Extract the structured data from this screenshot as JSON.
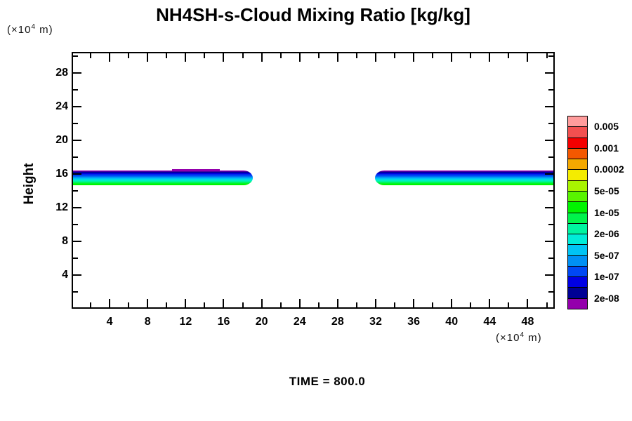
{
  "page": {
    "time_label": "TIME = 800.0"
  },
  "axis": {
    "y_label": "Height",
    "y_unit": {
      "prefix": "(×10",
      "exp": "4",
      "suffix": " m)"
    },
    "x_unit": {
      "prefix": "(×10",
      "exp": "4",
      "suffix": " m)"
    },
    "x_tick_labels": [
      "4",
      "8",
      "12",
      "16",
      "20",
      "24",
      "28",
      "32",
      "36",
      "40",
      "44",
      "48"
    ],
    "y_tick_labels": [
      "4",
      "8",
      "12",
      "16",
      "20",
      "24",
      "28"
    ]
  },
  "chart_data": {
    "type": "filled_contour",
    "title": "NH4SH-s-Cloud Mixing Ratio [kg/kg]",
    "xlabel": "(×10^4 m)",
    "ylabel": "Height",
    "ylabel_unit": "(×10^4 m)",
    "time": 800.0,
    "xlim": [
      0,
      50.85
    ],
    "ylim": [
      0,
      30.5
    ],
    "x_major_tick_step": 4,
    "x_minor_tick_step": 2,
    "y_major_tick_step": 4,
    "y_minor_tick_step": 2,
    "x_major_ticks": [
      4,
      8,
      12,
      16,
      20,
      24,
      28,
      32,
      36,
      40,
      44,
      48
    ],
    "y_major_ticks": [
      4,
      8,
      12,
      16,
      20,
      24,
      28
    ],
    "contour_levels": [
      2e-08,
      5e-08,
      1e-07,
      2e-07,
      5e-07,
      1e-06,
      2e-06,
      5e-06,
      1e-05,
      2e-05,
      5e-05,
      0.0001,
      0.0002,
      0.0005,
      0.001,
      0.002,
      0.005
    ],
    "colorbar": {
      "labels_top_to_bottom": [
        "0.005",
        "0.001",
        "0.0002",
        "5e-05",
        "1e-05",
        "2e-06",
        "5e-07",
        "1e-07",
        "2e-08"
      ],
      "colors_top_to_bottom": [
        "#FF9C9C",
        "#F25050",
        "#F40000",
        "#F45800",
        "#F4A800",
        "#F4EC00",
        "#A8F400",
        "#58F400",
        "#00F400",
        "#00F44C",
        "#00F4A0",
        "#00ECD8",
        "#00C4F4",
        "#0090F4",
        "#0048F4",
        "#0000E4",
        "#000094",
        "#9400AC"
      ]
    },
    "bands": [
      {
        "name": "left-cloud-band",
        "x_start": 0,
        "x_end": 19.1,
        "y_top": 16.4,
        "y_bottom": 14.65,
        "rounded": "right",
        "top_bump": {
          "x_start": 10.6,
          "x_end": 15.6
        }
      },
      {
        "name": "right-cloud-band",
        "x_start": 31.9,
        "x_end": 50.85,
        "y_top": 16.4,
        "y_bottom": 14.65,
        "rounded": "left"
      }
    ],
    "band_layers_top_to_bottom": [
      {
        "color": "#9400AC",
        "weight": 1.5
      },
      {
        "color": "#000094",
        "weight": 2
      },
      {
        "color": "#0000E4",
        "weight": 2
      },
      {
        "color": "#0048F4",
        "weight": 3
      },
      {
        "color": "#0090F4",
        "weight": 2
      },
      {
        "color": "#00C4F4",
        "weight": 2
      },
      {
        "color": "#00ECD8",
        "weight": 2
      },
      {
        "color": "#00F4A0",
        "weight": 2
      },
      {
        "color": "#00F44C",
        "weight": 2
      },
      {
        "color": "#00F400",
        "weight": 2.5
      }
    ]
  }
}
